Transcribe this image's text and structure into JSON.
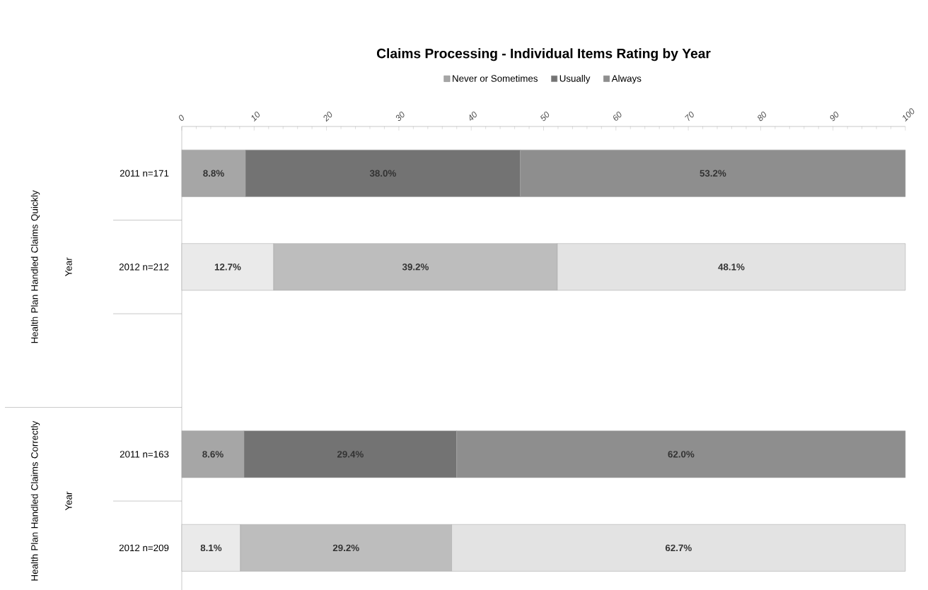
{
  "chart_data": {
    "type": "bar",
    "orientation": "horizontal",
    "stacked": true,
    "title": "Claims Processing - Individual Items Rating by Year",
    "categories": [
      "2011 n=171",
      "2012 n=212",
      null,
      "2011 n=163",
      "2012 n=209"
    ],
    "annotations": [
      "Health Plan Handled Claims Quickly",
      "Year",
      "Health Plan Handled Claims Correctly",
      "Year"
    ],
    "series": [
      {
        "name": "Never or Sometimes",
        "color": "#a6a6a6",
        "colors": [
          "#a6a6a6",
          "#eaeaea",
          null,
          "#a6a6a6",
          "#eaeaea"
        ],
        "values": [
          8.8,
          12.7,
          null,
          8.6,
          8.1
        ],
        "value_labels": [
          "8.8%",
          "12.7%",
          null,
          "8.6%",
          "8.1%"
        ]
      },
      {
        "name": "Usually",
        "color": "#737373",
        "colors": [
          "#737373",
          "#bdbdbd",
          null,
          "#737373",
          "#bdbdbd"
        ],
        "values": [
          38.0,
          39.2,
          null,
          29.4,
          29.2
        ],
        "value_labels": [
          "38.0%",
          "39.2%",
          null,
          "29.4%",
          "29.2%"
        ]
      },
      {
        "name": "Always",
        "color": "#8e8e8e",
        "colors": [
          "#8e8e8e",
          "#e3e3e3",
          null,
          "#8e8e8e",
          "#e3e3e3"
        ],
        "values": [
          53.2,
          48.1,
          null,
          62.0,
          62.7
        ],
        "value_labels": [
          "53.2%",
          "48.1%",
          null,
          "62.0%",
          "62.7%"
        ]
      }
    ],
    "xlim": [
      0,
      100
    ],
    "xticks": [
      0,
      10,
      20,
      30,
      40,
      50,
      60,
      70,
      80,
      90,
      100
    ],
    "grid": false,
    "legend": "top"
  }
}
